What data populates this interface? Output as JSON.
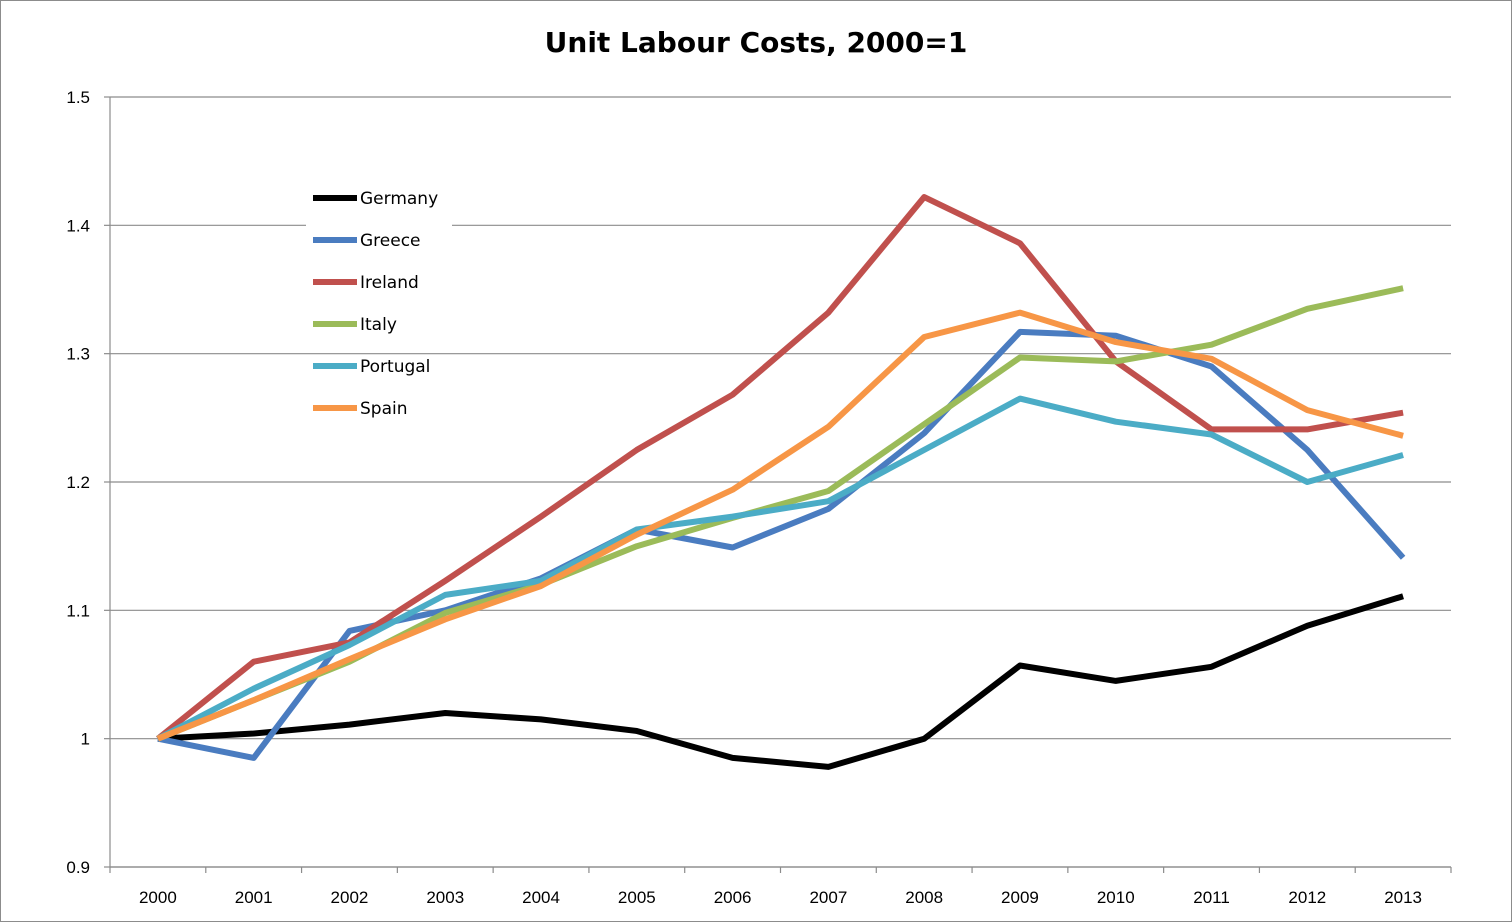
{
  "chart_data": {
    "type": "line",
    "title": "Unit Labour Costs, 2000=1",
    "xlabel": "",
    "ylabel": "",
    "ylim": [
      0.9,
      1.5
    ],
    "yticks": [
      "0.9",
      "1",
      "1.1",
      "1.2",
      "1.3",
      "1.4",
      "1.5"
    ],
    "grid": true,
    "legend_position": "top-left",
    "categories": [
      "2000",
      "2001",
      "2002",
      "2003",
      "2004",
      "2005",
      "2006",
      "2007",
      "2008",
      "2009",
      "2010",
      "2011",
      "2012",
      "2013"
    ],
    "series": [
      {
        "name": "Germany",
        "color": "#000000",
        "values": [
          1.0,
          1.004,
          1.011,
          1.02,
          1.015,
          1.006,
          0.985,
          0.978,
          1.0,
          1.057,
          1.045,
          1.056,
          1.088,
          1.111
        ]
      },
      {
        "name": "Greece",
        "color": "#4a7cc0",
        "values": [
          1.0,
          0.985,
          1.084,
          1.1,
          1.125,
          1.163,
          1.149,
          1.179,
          1.238,
          1.317,
          1.314,
          1.29,
          1.225,
          1.141
        ]
      },
      {
        "name": "Ireland",
        "color": "#c0504d",
        "values": [
          1.0,
          1.06,
          1.075,
          1.123,
          1.173,
          1.225,
          1.268,
          1.332,
          1.422,
          1.386,
          1.294,
          1.241,
          1.241,
          1.254
        ]
      },
      {
        "name": "Italy",
        "color": "#9bbb59",
        "values": [
          1.0,
          1.03,
          1.06,
          1.098,
          1.12,
          1.15,
          1.172,
          1.193,
          1.245,
          1.297,
          1.294,
          1.307,
          1.335,
          1.351
        ]
      },
      {
        "name": "Portugal",
        "color": "#4bacc6",
        "values": [
          1.0,
          1.039,
          1.073,
          1.112,
          1.123,
          1.163,
          1.173,
          1.185,
          1.225,
          1.265,
          1.247,
          1.237,
          1.2,
          1.221
        ]
      },
      {
        "name": "Spain",
        "color": "#f79646",
        "values": [
          1.0,
          1.03,
          1.062,
          1.093,
          1.119,
          1.159,
          1.194,
          1.243,
          1.313,
          1.332,
          1.309,
          1.296,
          1.256,
          1.236
        ]
      }
    ]
  }
}
